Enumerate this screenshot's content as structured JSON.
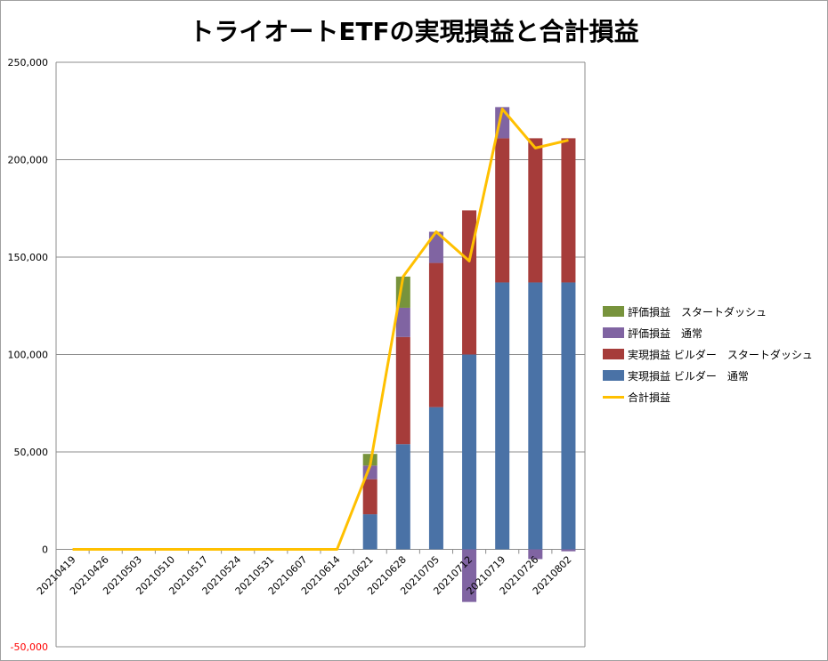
{
  "chart_data": {
    "type": "bar",
    "stacked": true,
    "title": "トライオートETFの実現損益と合計損益",
    "categories": [
      "20210419",
      "20210426",
      "20210503",
      "20210510",
      "20210517",
      "20210524",
      "20210531",
      "20210607",
      "20210614",
      "20210621",
      "20210628",
      "20210705",
      "20210712",
      "20210719",
      "20210726",
      "20210802"
    ],
    "ylim": [
      -50000,
      250000
    ],
    "yticks": [
      "250,000",
      "200,000",
      "150,000",
      "100,000",
      "50,000",
      "0",
      "-50,000"
    ],
    "ytick_values": [
      250000,
      200000,
      150000,
      100000,
      50000,
      0,
      -50000
    ],
    "grid": true,
    "legend_position": "right",
    "series": [
      {
        "name": "実現損益 ビルダー　通常",
        "color": "#4a72a6",
        "values": [
          0,
          0,
          0,
          0,
          0,
          0,
          0,
          0,
          0,
          18000,
          54000,
          73000,
          100000,
          137000,
          137000,
          137000
        ]
      },
      {
        "name": "実現損益 ビルダー　スタートダッシュ",
        "color": "#a63c3a",
        "values": [
          0,
          0,
          0,
          0,
          0,
          0,
          0,
          0,
          0,
          18000,
          55000,
          74000,
          74000,
          74000,
          74000,
          74000
        ]
      },
      {
        "name": "評価損益　通常",
        "color": "#8064a2",
        "values": [
          0,
          0,
          0,
          0,
          0,
          0,
          0,
          0,
          0,
          7000,
          15000,
          16000,
          -27000,
          16000,
          -5000,
          -1000
        ]
      },
      {
        "name": "評価損益　スタートダッシュ",
        "color": "#77933c",
        "values": [
          0,
          0,
          0,
          0,
          0,
          0,
          0,
          0,
          0,
          6000,
          16000,
          0,
          0,
          0,
          0,
          0
        ]
      }
    ],
    "line_series": {
      "name": "合計損益",
      "color": "#ffc000",
      "values": [
        0,
        0,
        0,
        0,
        0,
        0,
        0,
        0,
        0,
        43000,
        140000,
        163000,
        148000,
        226000,
        206000,
        210000
      ]
    }
  },
  "legend": [
    {
      "label": "評価損益　スタートダッシュ",
      "color": "#77933c",
      "kind": "bar"
    },
    {
      "label": "評価損益　通常",
      "color": "#8064a2",
      "kind": "bar"
    },
    {
      "label": "実現損益 ビルダー　スタートダッシュ",
      "color": "#a63c3a",
      "kind": "bar"
    },
    {
      "label": "実現損益 ビルダー　通常",
      "color": "#4a72a6",
      "kind": "bar"
    },
    {
      "label": "合計損益",
      "color": "#ffc000",
      "kind": "line"
    }
  ]
}
